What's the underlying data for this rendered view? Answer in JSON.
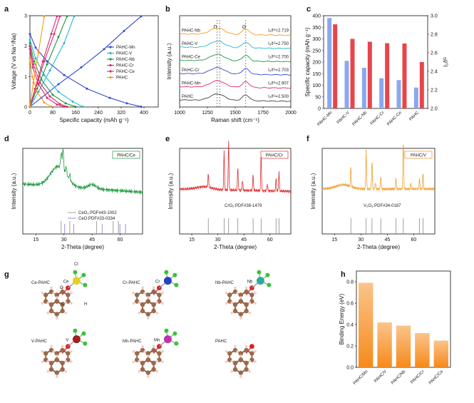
{
  "panel_labels": [
    "a",
    "b",
    "c",
    "d",
    "e",
    "f",
    "g",
    "h"
  ],
  "colors": {
    "PAHC-Mn": "#3447d8",
    "PAHC-V": "#27b5cf",
    "PAHC-Nb": "#1e9a3d",
    "PAHC-Cr": "#e0286a",
    "PAHC-Ce": "#e0286a",
    "PAHC": "#f59a1c",
    "cap_bar": "#8aa8ee",
    "ratio_bar": "#e8454b",
    "d_line": "#1f9b3f",
    "e_line": "#e03030",
    "f_line": "#f0a030",
    "h_bar": "#f7a44a",
    "carbon": "#9a6a4a",
    "hydrogen": "#f4c8c8",
    "oxygen": "#e02020"
  },
  "chart_data": [
    {
      "panel": "a",
      "type": "line",
      "xlabel": "Specific capacity (mAh g⁻¹)",
      "ylabel": "Voltage (V vs Na⁺/Na)",
      "xlim": [
        0,
        450
      ],
      "ylim": [
        0,
        3
      ],
      "xticks": [
        "0",
        "80",
        "160",
        "240",
        "320",
        "400"
      ],
      "yticks": [
        "0",
        "1",
        "2",
        "3"
      ],
      "legend": [
        "PAHC-Mn",
        "PAHC-V",
        "PAHC-Nb",
        "PAHC-Cr",
        "PAHC-Ce",
        "PAHC"
      ],
      "legend_position": "right",
      "series": [
        {
          "name": "PAHC-Mn",
          "discharge": [
            [
              0,
              2.4
            ],
            [
              20,
              1.95
            ],
            [
              60,
              1.5
            ],
            [
              120,
              1.05
            ],
            [
              200,
              0.6
            ],
            [
              280,
              0.3
            ],
            [
              340,
              0.12
            ],
            [
              390,
              0.01
            ]
          ],
          "charge": [
            [
              0,
              0.01
            ],
            [
              40,
              0.3
            ],
            [
              100,
              0.75
            ],
            [
              180,
              1.3
            ],
            [
              260,
              1.9
            ],
            [
              330,
              2.5
            ],
            [
              390,
              2.98
            ]
          ]
        },
        {
          "name": "PAHC-V",
          "discharge": [
            [
              0,
              2.2
            ],
            [
              20,
              1.6
            ],
            [
              50,
              1.05
            ],
            [
              100,
              0.5
            ],
            [
              150,
              0.18
            ],
            [
              185,
              0.01
            ]
          ],
          "charge": [
            [
              0,
              0.01
            ],
            [
              30,
              0.5
            ],
            [
              70,
              1.2
            ],
            [
              120,
              2.1
            ],
            [
              155,
              2.98
            ]
          ]
        },
        {
          "name": "PAHC-Nb",
          "discharge": [
            [
              0,
              2.1
            ],
            [
              15,
              1.5
            ],
            [
              40,
              0.9
            ],
            [
              80,
              0.4
            ],
            [
              125,
              0.12
            ],
            [
              160,
              0.01
            ]
          ],
          "charge": [
            [
              0,
              0.01
            ],
            [
              25,
              0.6
            ],
            [
              60,
              1.4
            ],
            [
              100,
              2.3
            ],
            [
              130,
              2.98
            ]
          ]
        },
        {
          "name": "PAHC-Cr",
          "discharge": [
            [
              0,
              2.0
            ],
            [
              12,
              1.4
            ],
            [
              35,
              0.8
            ],
            [
              70,
              0.35
            ],
            [
              105,
              0.1
            ],
            [
              130,
              0.01
            ]
          ],
          "charge": [
            [
              0,
              0.01
            ],
            [
              20,
              0.6
            ],
            [
              50,
              1.5
            ],
            [
              85,
              2.4
            ],
            [
              105,
              2.98
            ]
          ]
        },
        {
          "name": "PAHC-Ce",
          "discharge": [
            [
              0,
              1.9
            ],
            [
              10,
              1.3
            ],
            [
              30,
              0.75
            ],
            [
              60,
              0.3
            ],
            [
              95,
              0.08
            ],
            [
              120,
              0.01
            ]
          ],
          "charge": [
            [
              0,
              0.01
            ],
            [
              18,
              0.6
            ],
            [
              45,
              1.5
            ],
            [
              75,
              2.4
            ],
            [
              95,
              2.98
            ]
          ]
        },
        {
          "name": "PAHC",
          "discharge": [
            [
              0,
              1.6
            ],
            [
              8,
              1.0
            ],
            [
              25,
              0.5
            ],
            [
              50,
              0.15
            ],
            [
              75,
              0.01
            ]
          ],
          "charge": [
            [
              0,
              0.01
            ],
            [
              12,
              0.8
            ],
            [
              30,
              1.8
            ],
            [
              50,
              2.98
            ]
          ]
        }
      ]
    },
    {
      "panel": "b",
      "type": "line",
      "xlabel": "Raman shift (cm⁻¹)",
      "ylabel": "Intensity (a.u.)",
      "xlim": [
        1000,
        2000
      ],
      "xticks": [
        "1000",
        "1250",
        "1500",
        "1750",
        "2000"
      ],
      "peak_labels": [
        "D",
        "G"
      ],
      "series": [
        {
          "name": "PAHC-Nb",
          "ratio": "I₂/Iᴳ=2.719",
          "offset": 5
        },
        {
          "name": "PAHC-V",
          "ratio": "I₂/Iᴳ=2.750",
          "offset": 4
        },
        {
          "name": "PAHC-Ce",
          "ratio": "I₂/Iᴳ=2.700",
          "offset": 3
        },
        {
          "name": "PAHC-Cr",
          "ratio": "I₂/Iᴳ=2.703",
          "offset": 2
        },
        {
          "name": "PAHC-Mn",
          "ratio": "I₂/Iᴳ=2.907",
          "offset": 1
        },
        {
          "name": "PAHC",
          "ratio": "I₂/Iᴳ=2.500",
          "offset": 0
        }
      ]
    },
    {
      "panel": "c",
      "type": "bar",
      "categories": [
        "PAHC-Mn",
        "PAHC-V",
        "PAHC-Nb",
        "PAHC-Cr",
        "PAHC-Ce",
        "PAHC"
      ],
      "ylabel": "Specific capacity (mAh g⁻¹)",
      "y2label": "I₂/Iᴳ",
      "ylim": [
        0,
        400
      ],
      "y2lim": [
        2.0,
        3.0
      ],
      "yticks": [
        "0",
        "50",
        "100",
        "150",
        "200",
        "250",
        "300",
        "350",
        "400"
      ],
      "y2ticks": [
        "2.0",
        "2.2",
        "2.4",
        "2.6",
        "2.8",
        "3.0"
      ],
      "series": [
        {
          "name": "capacity",
          "axis": "left",
          "values": [
            390,
            205,
            175,
            130,
            122,
            90
          ]
        },
        {
          "name": "ratio",
          "axis": "right",
          "values": [
            2.907,
            2.75,
            2.719,
            2.703,
            2.7,
            2.5
          ]
        }
      ]
    },
    {
      "panel": "d",
      "type": "line",
      "xlabel": "2-Theta (degree)",
      "ylabel": "Intensity (a.u.)",
      "xticks": [
        "15",
        "30",
        "45",
        "60"
      ],
      "sample_label": "PAHC/Ce",
      "ref_labels": [
        "CeO₂:PDF#43-1002",
        "CeO:PDF#33-0334"
      ],
      "ref1_peaks": [
        28.5,
        33.1,
        47.5,
        56.3,
        59.1
      ],
      "ref2_peaks": [
        30.0,
        34.8,
        50.0,
        59.5,
        62.5
      ]
    },
    {
      "panel": "e",
      "type": "line",
      "xlabel": "2-Theta (degree)",
      "ylabel": "Intensity (a.u.)",
      "xticks": [
        "15",
        "30",
        "45",
        "60"
      ],
      "sample_label": "PAHC/Cr",
      "ref_labels": [
        "CrO₂:PDF#38-1479"
      ],
      "ref1_peaks": [
        24.5,
        33.6,
        36.2,
        41.5,
        50.3,
        54.9,
        63.5,
        65.2
      ],
      "peaks": [
        24.5,
        33.6,
        36.2,
        41.5,
        44.2,
        50.3,
        54.9,
        58.5,
        63.5,
        65.2
      ]
    },
    {
      "panel": "f",
      "type": "line",
      "xlabel": "2-Theta (degree)",
      "ylabel": "Intensity (a.u.)",
      "xticks": [
        "15",
        "30",
        "45",
        "60"
      ],
      "sample_label": "PAHC/V",
      "ref_labels": [
        "V₂O₃:PDF#34-0187"
      ],
      "ref1_peaks": [
        24.3,
        33.0,
        36.3,
        41.3,
        49.9,
        54.1,
        63.3,
        65.3
      ],
      "peaks": [
        24.3,
        33.0,
        36.3,
        38.2,
        41.3,
        49.9,
        54.1,
        58.4,
        63.3,
        65.3
      ]
    },
    {
      "panel": "h",
      "type": "bar",
      "ylabel": "Binding Energy (eV)",
      "categories": [
        "PAHC/Mn",
        "PAHC/V",
        "PAHC/Nb",
        "PAHC/Cr",
        "PAHC/Ce"
      ],
      "values": [
        0.79,
        0.42,
        0.39,
        0.32,
        0.25
      ],
      "ylim": [
        0,
        0.9
      ],
      "yticks": [
        "0.0",
        "0.2",
        "0.4",
        "0.6",
        "0.8"
      ]
    }
  ],
  "molecules": {
    "labels": [
      "Ce-PAHC",
      "Cr-PAHC",
      "Nb-PAHC",
      "V-PAHC",
      "Mn-PAHC",
      "PAHC"
    ],
    "metal_symbols": [
      "Ce",
      "Cr",
      "Nb",
      "V",
      "Mn"
    ],
    "metal_colors": [
      "#e8d020",
      "#2840c0",
      "#30a8a0",
      "#a02020",
      "#c030b0"
    ],
    "atom_labels": [
      "Cl",
      "O",
      "C",
      "H"
    ]
  }
}
